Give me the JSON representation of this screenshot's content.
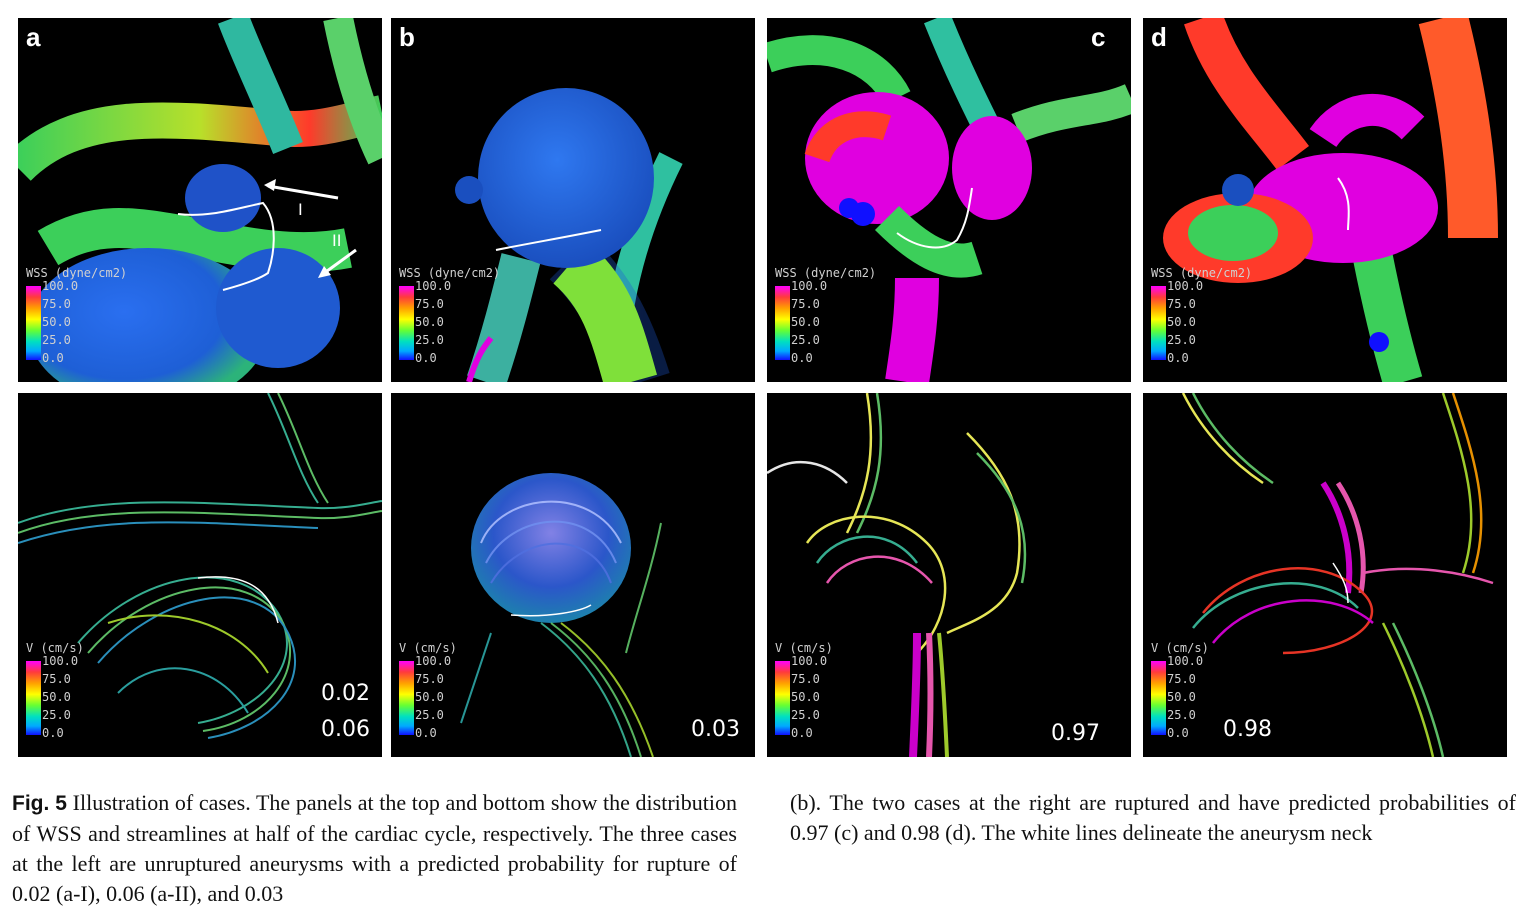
{
  "panels": {
    "a": {
      "letter": "a"
    },
    "b": {
      "letter": "b"
    },
    "c": {
      "letter": "c"
    },
    "d": {
      "letter": "d"
    }
  },
  "labels": {
    "arrow_I": "I",
    "arrow_II": "II"
  },
  "legend_wss": {
    "title": "WSS (dyne/cm2)",
    "ticks": [
      "100.0",
      "75.0",
      "50.0",
      "25.0",
      "0.0"
    ]
  },
  "legend_v": {
    "title": "V (cm/s)",
    "ticks": [
      "100.0",
      "75.0",
      "50.0",
      "25.0",
      "0.0"
    ]
  },
  "probabilities": {
    "a_I": "0.02",
    "a_II": "0.06",
    "b": "0.03",
    "c": "0.97",
    "d": "0.98"
  },
  "colors": {
    "wss_blue": "#1e5fd6",
    "wss_green": "#3ccf5a",
    "wss_magenta": "#e000e0",
    "wss_red": "#ff3a2a",
    "background": "#000000"
  },
  "caption": {
    "fig_label": "Fig. 5",
    "left_text": "Illustration of cases. The panels at the top and bottom show the distribution of WSS and streamlines at half of the cardiac cycle, respectively. The three cases at the left are unruptured aneurysms with a predicted probability for rupture of 0.02 (a-I), 0.06 (a-II), and 0.03",
    "right_text": "(b). The two cases at the right are ruptured and have predicted probabilities of 0.97 (c) and 0.98 (d). The white lines delineate the aneurysm neck"
  }
}
